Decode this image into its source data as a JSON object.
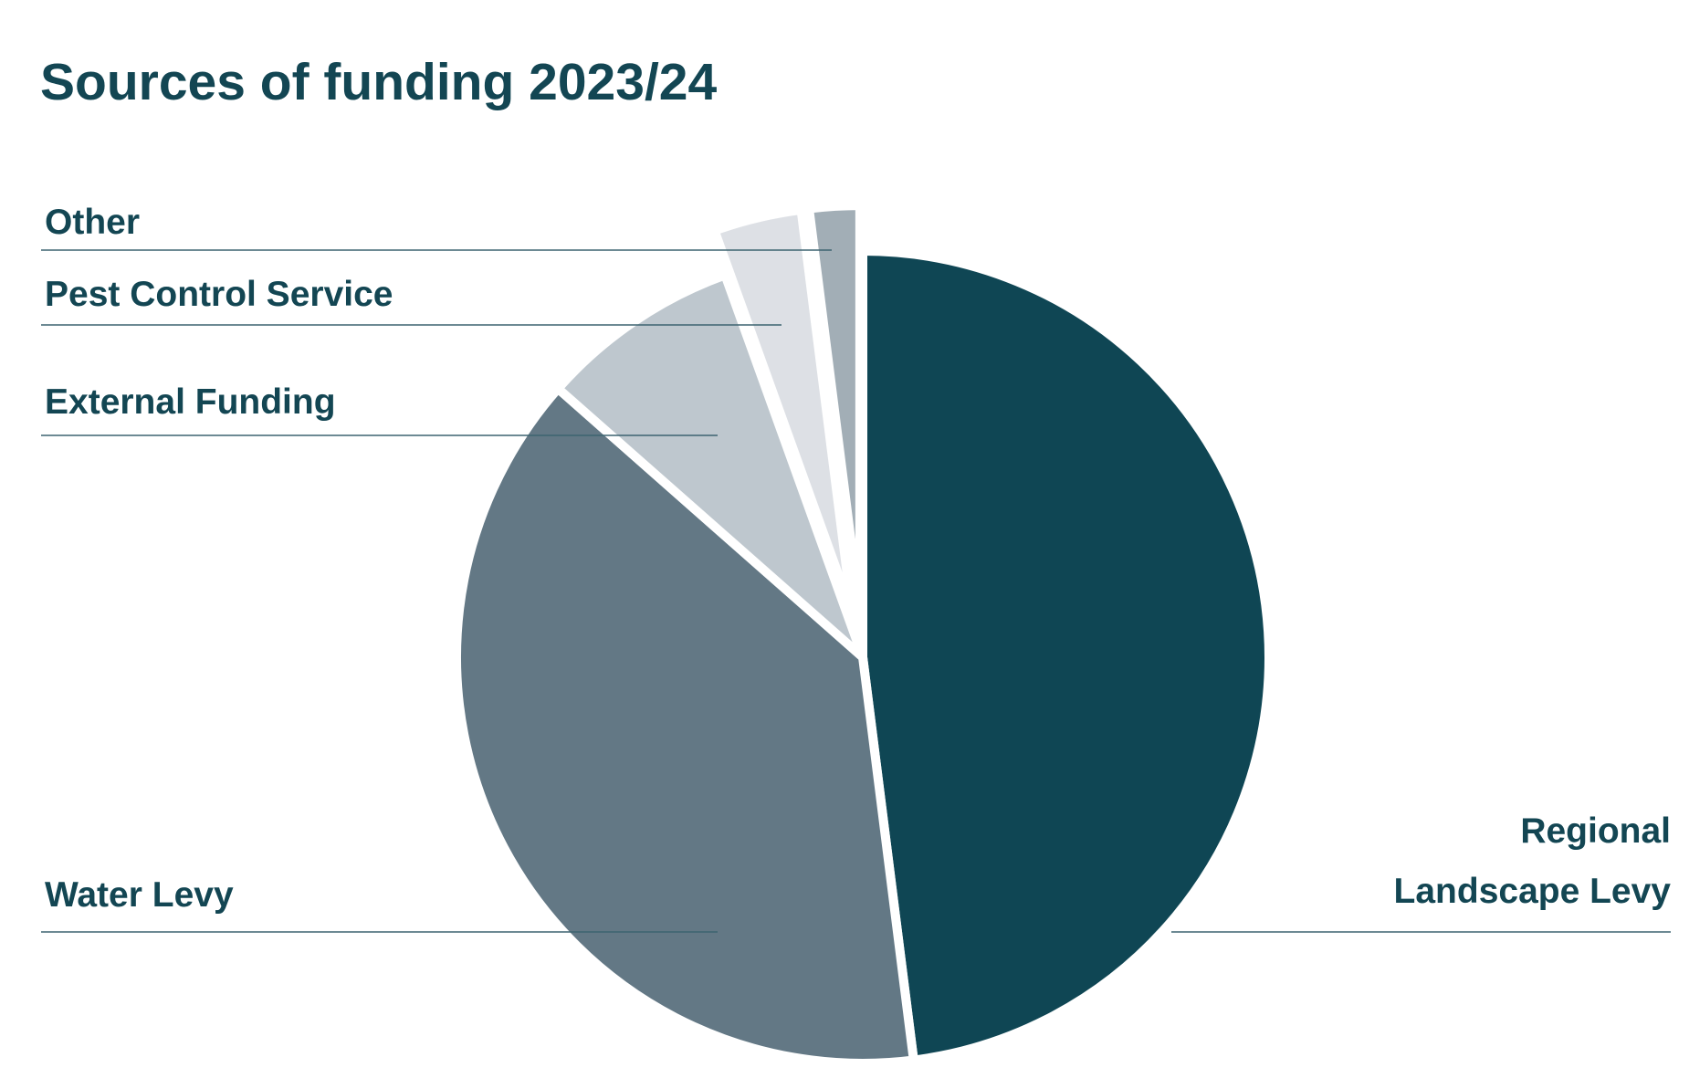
{
  "chart_data": {
    "type": "pie",
    "title": "Sources of funding 2023/24",
    "slices": [
      {
        "label": [
          "Regional",
          "Landscape Levy"
        ],
        "value": 48.0,
        "color": "#0f4654"
      },
      {
        "label": [
          "Water Levy"
        ],
        "value": 38.5,
        "color": "#637885"
      },
      {
        "label": [
          "External Funding"
        ],
        "value": 8.0,
        "color": "#bec7ce"
      },
      {
        "label": [
          "Pest Control Service"
        ],
        "value": 3.5,
        "color": "#dde0e5"
      },
      {
        "label": [
          "Other"
        ],
        "value": 2.0,
        "color": "#a2aeb6"
      }
    ],
    "start_angle_deg": 0,
    "direction": "clockwise",
    "exploded_slices": [
      "Pest Control Service",
      "Other"
    ],
    "legend": "none"
  }
}
